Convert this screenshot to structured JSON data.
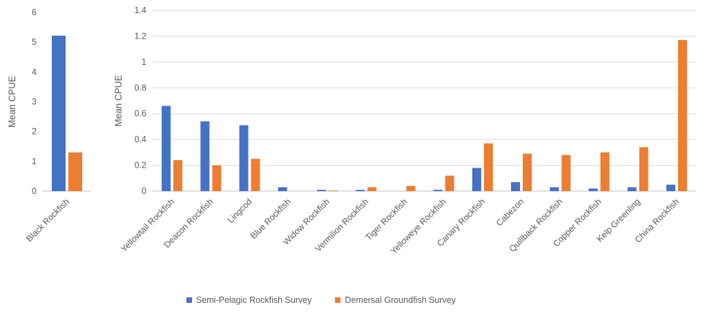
{
  "chart_data": [
    {
      "type": "bar",
      "ylabel": "Mean CPUE",
      "xlabel": "",
      "ylim": [
        0,
        6
      ],
      "yticks": [
        0,
        1,
        2,
        3,
        4,
        5,
        6
      ],
      "grid": false,
      "categories": [
        "Black Rockfish"
      ],
      "series": [
        {
          "name": "Semi-Pelagic Rockfish Survey",
          "values": [
            5.22
          ]
        },
        {
          "name": "Demersal Groundfish Survey",
          "values": [
            1.3
          ]
        }
      ]
    },
    {
      "type": "bar",
      "ylabel": "Mean CPUE",
      "xlabel": "",
      "ylim": [
        0,
        1.4
      ],
      "yticks": [
        "0",
        "0.2",
        "0.4",
        "0.6",
        "0.8",
        "1",
        "1.2",
        "1.4"
      ],
      "grid": true,
      "categories": [
        "Yellowtail Rockfish",
        "Deacon Rockfish",
        "Lingcod",
        "Blue Rockfish",
        "Widow Rockfish",
        "Vermilion Rockfish",
        "Tiger Rockfish",
        "Yelloweye Rockfish",
        "Canary Rockfish",
        "Cabezon",
        "Quillback Rockfish",
        "Copper Rockfish",
        "Kelp Greenling",
        "China Rockfish"
      ],
      "series": [
        {
          "name": "Semi-Pelagic Rockfish Survey",
          "values": [
            0.66,
            0.54,
            0.51,
            0.03,
            0.01,
            0.01,
            0.0,
            0.01,
            0.18,
            0.07,
            0.03,
            0.02,
            0.03,
            0.05
          ]
        },
        {
          "name": "Demersal Groundfish Survey",
          "values": [
            0.24,
            0.2,
            0.25,
            0.0,
            0.005,
            0.03,
            0.04,
            0.12,
            0.37,
            0.29,
            0.28,
            0.3,
            0.34,
            1.17
          ]
        }
      ]
    }
  ],
  "legend": {
    "placement": "bottom",
    "items": [
      {
        "label": "Semi-Pelagic Rockfish Survey",
        "color": "#4472c4"
      },
      {
        "label": "Demersal Groundfish Survey",
        "color": "#ed7d31"
      }
    ]
  },
  "colors": {
    "series1": "#4472c4",
    "series2": "#ed7d31",
    "grid": "#d9d9d9",
    "axis": "#bfbfbf"
  }
}
